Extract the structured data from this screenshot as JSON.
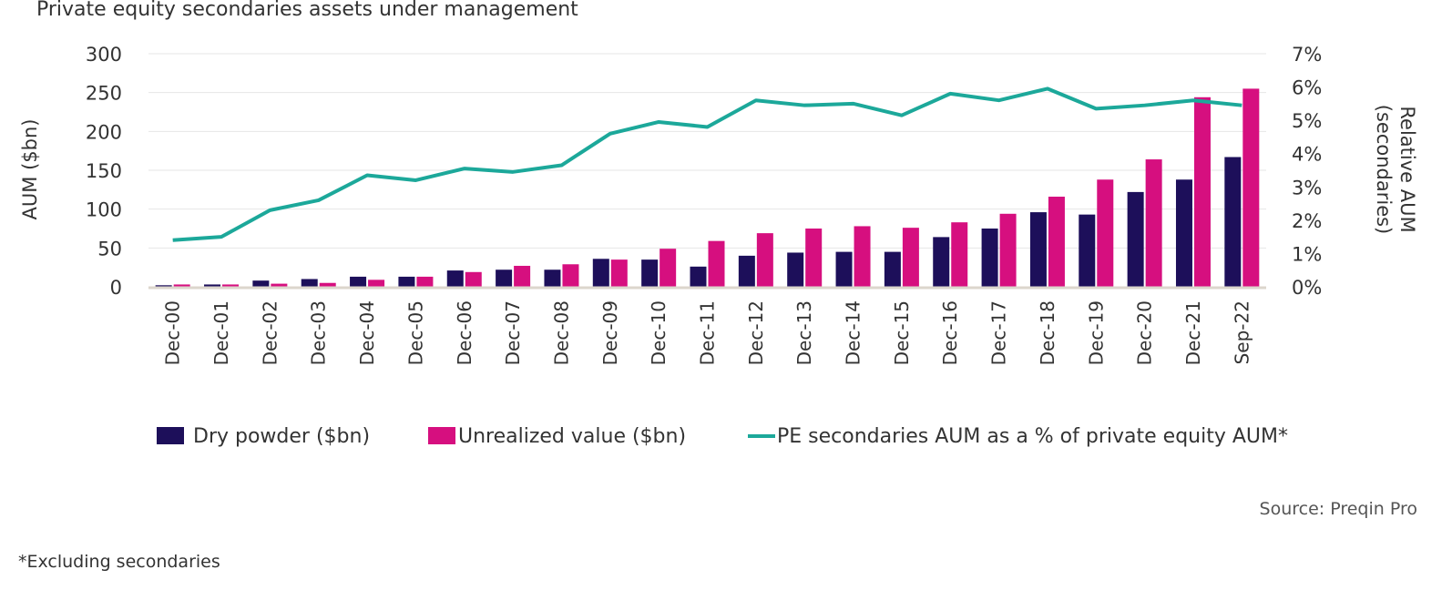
{
  "title": "Private equity secondaries assets under management",
  "source": "Source: Preqin Pro",
  "footnote": "*Excluding secondaries",
  "colors": {
    "dry_powder": "#1d0f5a",
    "unrealized": "#d60f7f",
    "line": "#1ca89a",
    "grid": "#e6e6e6",
    "baseline": "#dcd6cc"
  },
  "chart_data": {
    "type": "bar",
    "title": "Private equity secondaries assets under management",
    "categories": [
      "Dec-00",
      "Dec-01",
      "Dec-02",
      "Dec-03",
      "Dec-04",
      "Dec-05",
      "Dec-06",
      "Dec-07",
      "Dec-08",
      "Dec-09",
      "Dec-10",
      "Dec-11",
      "Dec-12",
      "Dec-13",
      "Dec-14",
      "Dec-15",
      "Dec-16",
      "Dec-17",
      "Dec-18",
      "Dec-19",
      "Dec-20",
      "Dec-21",
      "Sep-22"
    ],
    "ylabel": "AUM ($bn)",
    "ylim": [
      0,
      300
    ],
    "yticks": [
      "0",
      "50",
      "100",
      "150",
      "200",
      "250",
      "300"
    ],
    "y2label_line1": "Relative AUM",
    "y2label_line2": "(secondaries)",
    "y2lim": [
      0,
      7
    ],
    "y2ticks": [
      "0%",
      "1%",
      "2%",
      "3%",
      "4%",
      "5%",
      "6%",
      "7%"
    ],
    "grid": true,
    "legend_position": "bottom",
    "series": [
      {
        "name": "Dry powder ($bn)",
        "kind": "bar",
        "axis": "left",
        "values": [
          2,
          3,
          8,
          10,
          13,
          13,
          21,
          22,
          22,
          36,
          35,
          26,
          40,
          44,
          45,
          45,
          64,
          75,
          96,
          93,
          122,
          138,
          167
        ]
      },
      {
        "name": "Unrealized value ($bn)",
        "kind": "bar",
        "axis": "left",
        "values": [
          3,
          3,
          4,
          5,
          9,
          13,
          19,
          27,
          29,
          35,
          49,
          59,
          69,
          75,
          78,
          76,
          83,
          94,
          116,
          138,
          164,
          244,
          255
        ]
      },
      {
        "name": "PE secondaries AUM as a % of private equity AUM*",
        "kind": "line",
        "axis": "right",
        "values": [
          1.4,
          1.5,
          2.3,
          2.6,
          3.35,
          3.2,
          3.55,
          3.45,
          3.65,
          4.6,
          4.95,
          4.8,
          5.6,
          5.45,
          5.5,
          5.15,
          5.8,
          5.6,
          5.95,
          5.35,
          5.45,
          5.6,
          5.45
        ]
      }
    ]
  }
}
